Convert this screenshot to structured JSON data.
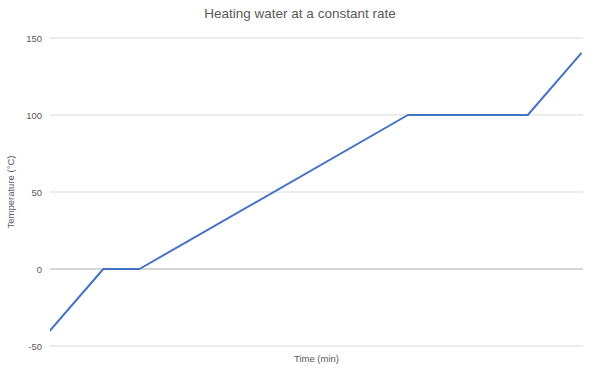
{
  "chart_data": {
    "type": "line",
    "title": "Heating water at a constant rate",
    "x_label": "Time (min)",
    "y_label": "Temperature (°C)",
    "x": [
      0,
      2.8,
      4.7,
      18.8,
      25.1,
      27.9
    ],
    "values": [
      -40,
      0,
      0,
      100,
      100,
      140
    ],
    "color": "#4472c4",
    "xlim": [
      0,
      28
    ],
    "ylim": [
      -50,
      150
    ],
    "yticks": [
      -50,
      0,
      50,
      100,
      150
    ],
    "grid": true,
    "tick_labels": "y"
  }
}
